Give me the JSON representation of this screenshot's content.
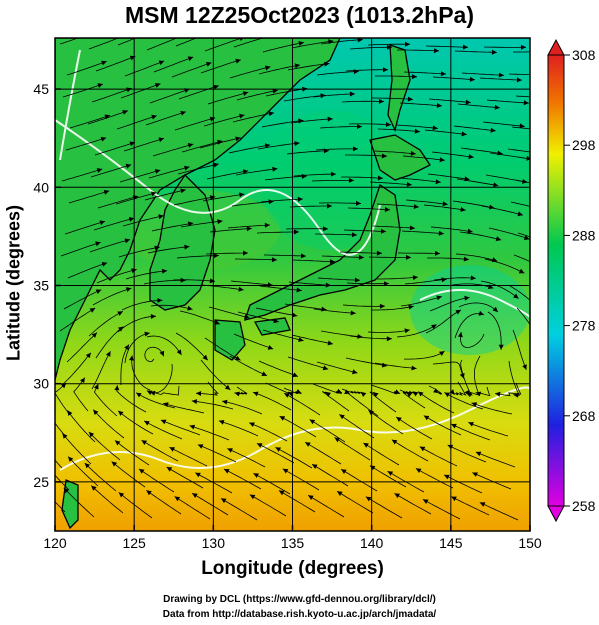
{
  "title": "MSM 12Z25Oct2023 (1013.2hPa)",
  "x_axis": {
    "label": "Longitude (degrees)",
    "range": [
      120,
      150
    ],
    "ticks": [
      "120",
      "125",
      "130",
      "135",
      "140",
      "145",
      "150"
    ]
  },
  "y_axis": {
    "label": "Latitude  (degrees)",
    "range": [
      22.5,
      47.6
    ],
    "ticks": [
      "25",
      "30",
      "35",
      "40",
      "45"
    ]
  },
  "colorbar": {
    "range": [
      258,
      308
    ],
    "ticks": [
      "258",
      "268",
      "278",
      "288",
      "298",
      "308"
    ],
    "colors": [
      "#e000e0",
      "#2020e0",
      "#00d0e0",
      "#00c850",
      "#f0f000",
      "#f07000",
      "#e02020"
    ]
  },
  "map": {
    "field": "temperature",
    "field_colors": {
      "north": "#00cc70",
      "mid": "#66d020",
      "south": "#f0b000"
    },
    "grid": true,
    "overlays": [
      "wind streamlines",
      "coastlines",
      "white contour lines"
    ]
  },
  "credits": {
    "line1": "Drawing by DCL (https://www.gfd-dennou.org/library/dcl/)",
    "line2": "Data from http://database.rish.kyoto-u.ac.jp/arch/jmadata/"
  }
}
